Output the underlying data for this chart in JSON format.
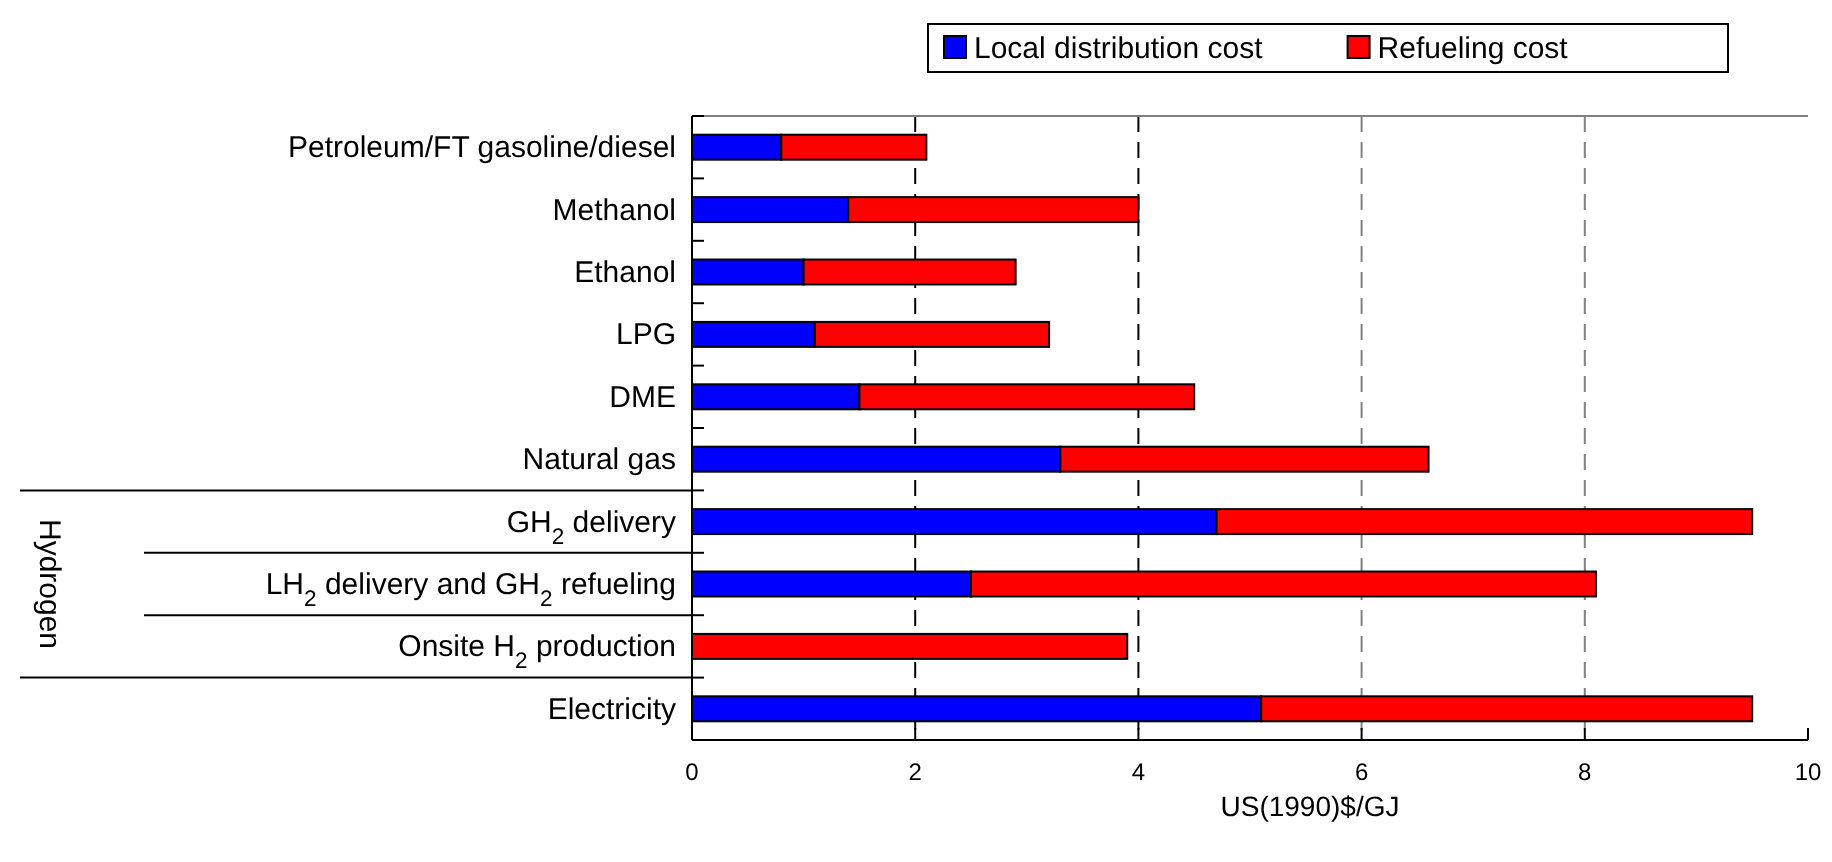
{
  "chart_data": {
    "type": "bar",
    "orientation": "horizontal",
    "stacked": true,
    "categories": [
      "Petroleum/FT gasoline/diesel",
      "Methanol",
      "Ethanol",
      "LPG",
      "DME",
      "Natural gas",
      "GH$_{2}$ delivery",
      "LH$_{2}$ delivery and GH$_{2}$ refueling",
      "Onsite H$_{2}$ production",
      "Electricity"
    ],
    "series": [
      {
        "name": "Local distribution cost",
        "color": "#0000ff",
        "values": [
          0.8,
          1.4,
          1.0,
          1.1,
          1.5,
          3.3,
          4.7,
          2.5,
          0,
          5.1
        ]
      },
      {
        "name": "Refueling cost",
        "color": "#ff0000",
        "values": [
          1.3,
          2.6,
          1.9,
          2.1,
          3.0,
          3.3,
          4.8,
          5.6,
          3.9,
          4.4
        ]
      }
    ],
    "xlabel": "US(1990)$/GJ",
    "xlim": [
      0,
      10
    ],
    "xticks": [
      0,
      2,
      4,
      6,
      8,
      10
    ],
    "grid": "x",
    "legend": "top right",
    "annotations": [
      "Hydrogen"
    ]
  }
}
